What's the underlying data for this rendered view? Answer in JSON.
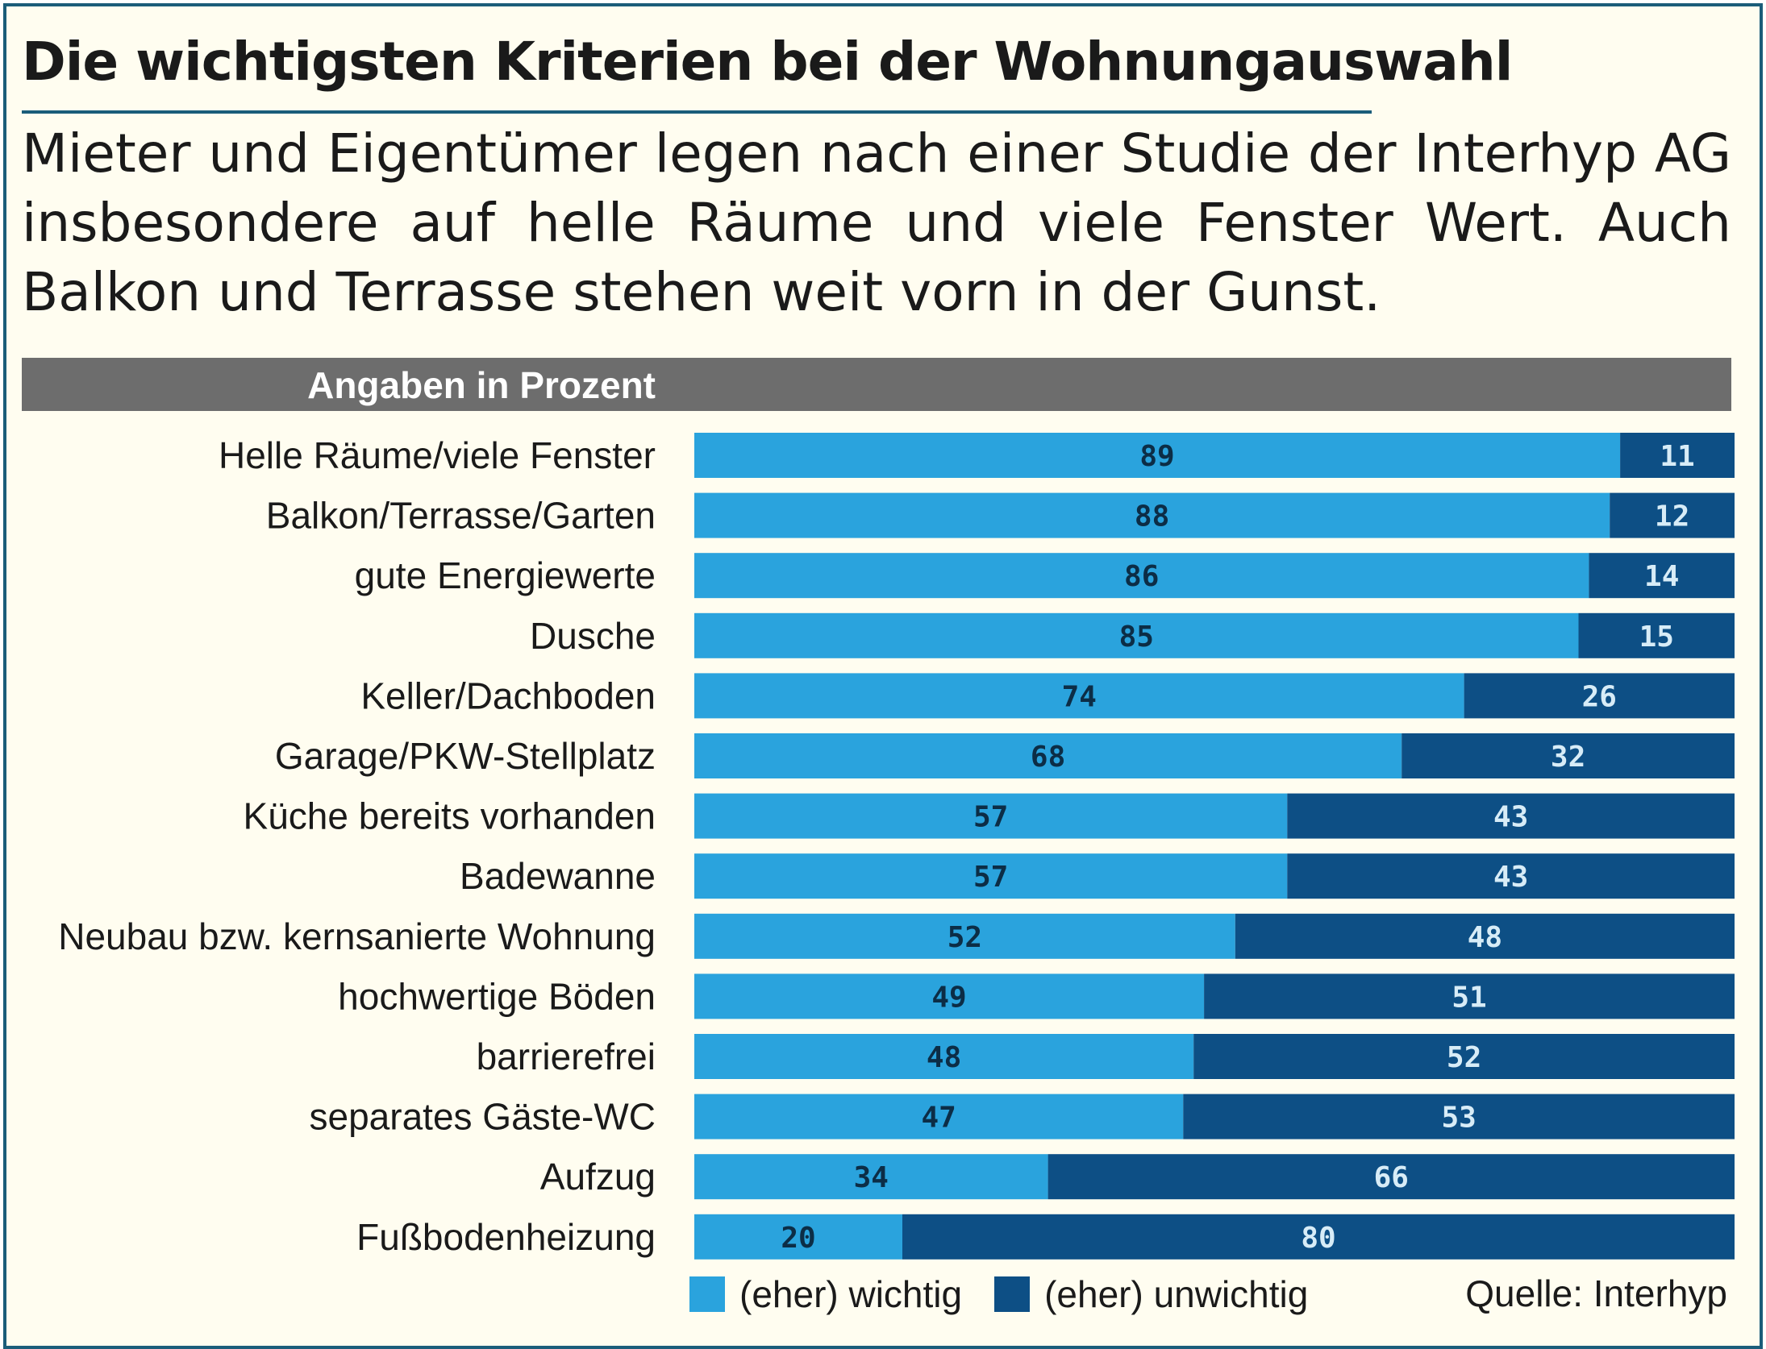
{
  "title": "Die wichtigsten Kriterien bei der Wohnungauswahl",
  "subtitle": "Mieter und Eigentümer legen nach einer Studie der Interhyp AG insbesondere auf helle Räume und viele Fenster Wert. Auch Balkon und Terrasse stehen weit vorn in der Gunst.",
  "unit_label": "Angaben in Prozent",
  "source": "Quelle: Interhyp",
  "colors": {
    "light": "#2aa3dd",
    "dark": "#0d4f85",
    "light_text": "#0c2d46",
    "dark_text": "#d7ecf7"
  },
  "chart_data": {
    "type": "bar",
    "orientation": "horizontal",
    "stacked": true,
    "categories": [
      "Helle Räume/viele Fenster",
      "Balkon/Terrasse/Garten",
      "gute Energiewerte",
      "Dusche",
      "Keller/Dachboden",
      "Garage/PKW-Stellplatz",
      "Küche bereits vorhanden",
      "Badewanne",
      "Neubau bzw. kernsanierte Wohnung",
      "hochwertige Böden",
      "barrierefrei",
      "separates Gäste-WC",
      "Aufzug",
      "Fußbodenheizung"
    ],
    "series": [
      {
        "name": "(eher) wichtig",
        "values": [
          89,
          88,
          86,
          85,
          74,
          68,
          57,
          57,
          52,
          49,
          48,
          47,
          34,
          20
        ]
      },
      {
        "name": "(eher) unwichtig",
        "values": [
          11,
          12,
          14,
          15,
          26,
          32,
          43,
          43,
          48,
          51,
          52,
          53,
          66,
          80
        ]
      }
    ],
    "xlim": [
      0,
      100
    ],
    "grid": false,
    "legend": "bottom"
  }
}
